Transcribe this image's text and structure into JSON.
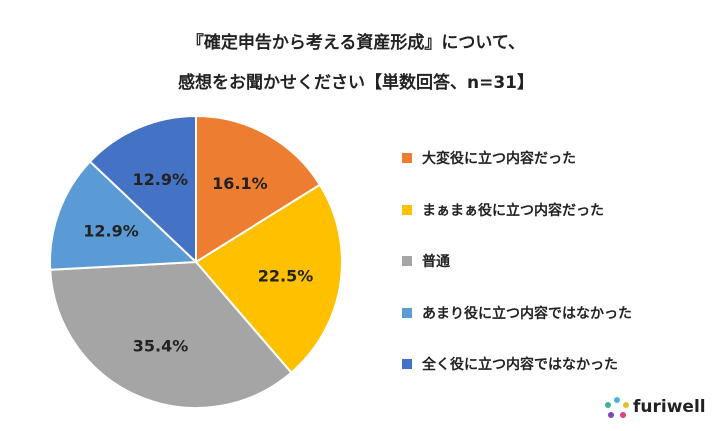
{
  "chart_data": {
    "type": "pie",
    "title_lines": [
      "『確定申告から考える資産形成』について、",
      "感想をお聞かせください【単数回答、n=31】"
    ],
    "categories": [
      "大変役に立つ内容だった",
      "まぁまぁ役に立つ内容だった",
      "普通",
      "あまり役に立つ内容ではなかった",
      "全く役に立つ内容ではなかった"
    ],
    "values": [
      16.1,
      22.5,
      35.4,
      12.9,
      12.9
    ],
    "labels": [
      "16.1%",
      "22.5%",
      "35.4%",
      "12.9%",
      "12.9%"
    ],
    "colors": [
      "#ED7D31",
      "#FFC000",
      "#A5A5A5",
      "#5B9BD5",
      "#4472C4"
    ],
    "legend_position": "right"
  },
  "logo": {
    "text": "furiwell"
  }
}
